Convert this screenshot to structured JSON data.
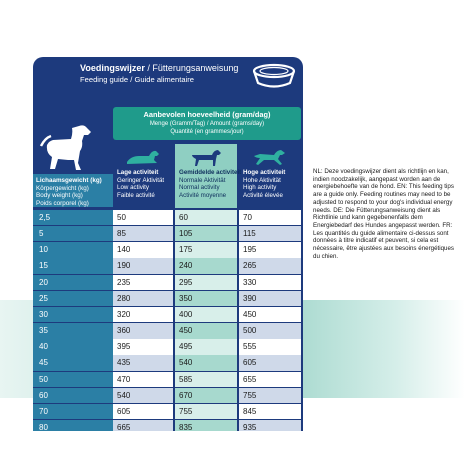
{
  "header": {
    "title_bold": "Voedingswijzer",
    "title_rest": " / Fütterungsanweisung",
    "subtitle": "Feeding guide / Guide alimentaire"
  },
  "advice": {
    "title": "Aanbevolen hoeveelheid (gram/dag)",
    "line1": "Menge (Gramm/Tag) / Amount (grams/day)",
    "line2": "Quantité (en grammes/jour)"
  },
  "columns": [
    {
      "label_nl": "Lage activiteit",
      "label_de": "Geringer Aktivität",
      "label_en": "Low activity",
      "label_fr": "Faible activité"
    },
    {
      "label_nl": "Gemiddelde activiteit",
      "label_de": "Normale Aktivität",
      "label_en": "Normal activity",
      "label_fr": "Activité moyenne"
    },
    {
      "label_nl": "Hoge activiteit",
      "label_de": "Hohe Aktivität",
      "label_en": "High activity",
      "label_fr": "Activité élevée"
    }
  ],
  "weight_header": {
    "nl": "Lichaamsgewicht (kg)",
    "de": "Körpergewicht (kg)",
    "en": "Body weight (kg)",
    "fr": "Poids corporel (kg)"
  },
  "rows": [
    {
      "weight": "2,5",
      "low": "50",
      "normal": "60",
      "high": "70"
    },
    {
      "weight": "5",
      "low": "85",
      "normal": "105",
      "high": "115"
    },
    {
      "weight": "10",
      "low": "140",
      "normal": "175",
      "high": "195"
    },
    {
      "weight": "15",
      "low": "190",
      "normal": "240",
      "high": "265"
    },
    {
      "weight": "20",
      "low": "235",
      "normal": "295",
      "high": "330"
    },
    {
      "weight": "25",
      "low": "280",
      "normal": "350",
      "high": "390"
    },
    {
      "weight": "30",
      "low": "320",
      "normal": "400",
      "high": "450"
    },
    {
      "weight": "35",
      "low": "360",
      "normal": "450",
      "high": "500"
    },
    {
      "weight": "40",
      "low": "395",
      "normal": "495",
      "high": "555"
    },
    {
      "weight": "45",
      "low": "435",
      "normal": "540",
      "high": "605"
    },
    {
      "weight": "50",
      "low": "470",
      "normal": "585",
      "high": "655"
    },
    {
      "weight": "60",
      "low": "540",
      "normal": "670",
      "high": "755"
    },
    {
      "weight": "70",
      "low": "605",
      "normal": "755",
      "high": "845"
    },
    {
      "weight": "80",
      "low": "665",
      "normal": "835",
      "high": "935"
    }
  ],
  "note": "NL: Deze voedingswijzer dient als richtlijn en kan, indien noodzakelijk, aangepast worden aan de energiebehoefte van de hond. EN: This feeding tips are a guide only. Feeding routines may need to be adjusted to respond to your dog's individual energy needs. DE: Die Fütterungsanweisung dient als Richtlinie und kann gegebenenfalls dem Energiebedarf des Hundes angepasst werden. FR: Les quantités du guide alimentaire ci-dessus sont données à titre indicatif et peuvent, si cela est nécessaire, être ajustées aux besoins énergétiques du chien.",
  "colors": {
    "navy": "#1d3a7d",
    "teal": "#1f9b8b",
    "weight_col": "#2b7fa5"
  },
  "icons": [
    "food-bowl-icon",
    "dog-icon",
    "lying-dog-icon",
    "walking-dog-icon",
    "running-dog-icon"
  ]
}
